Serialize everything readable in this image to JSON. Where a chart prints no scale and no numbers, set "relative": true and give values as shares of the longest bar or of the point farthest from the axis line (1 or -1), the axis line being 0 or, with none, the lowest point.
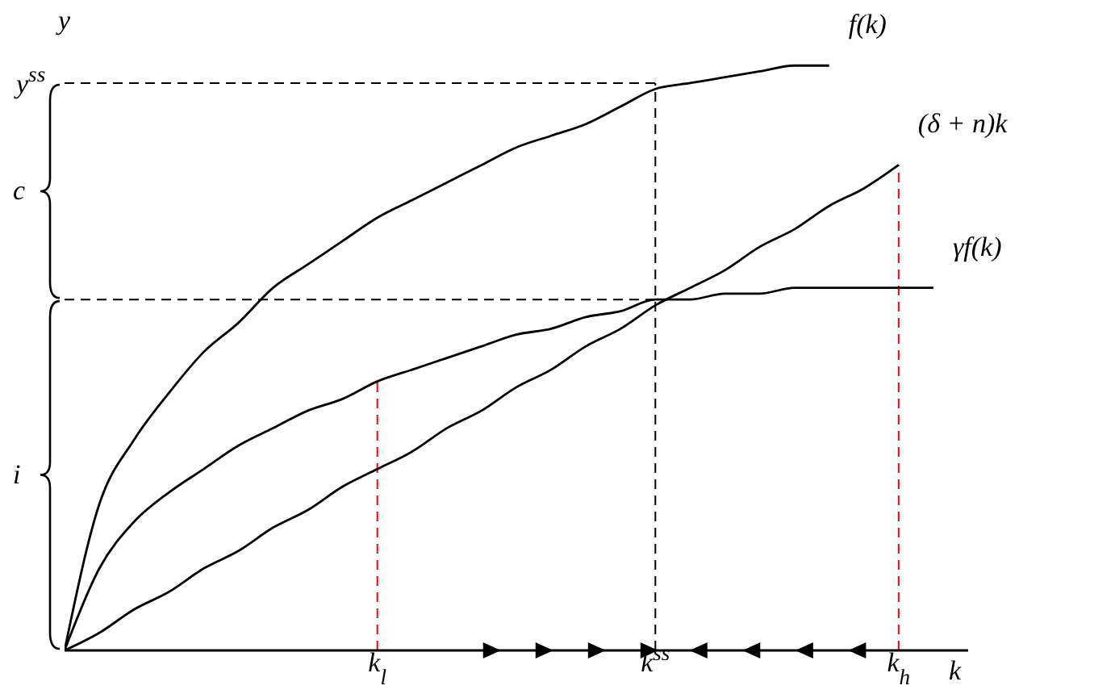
{
  "chart_data": {
    "type": "line",
    "relative": true,
    "xlabel": "k",
    "ylabel": "y",
    "legend": false,
    "grid": false,
    "marker": "none",
    "line_style": "solid",
    "categories": [
      null,
      null,
      null,
      null,
      null,
      null,
      null,
      null,
      null,
      "k$_{l}$",
      null,
      null,
      null,
      null,
      null,
      null,
      null,
      "k$^{ss}$",
      null,
      null,
      null,
      null,
      null,
      null,
      "k$_{h}$",
      null
    ],
    "series": [
      {
        "name": "f(k)",
        "color": "#000000",
        "values": [
          0,
          0.25,
          0.36,
          0.44,
          0.51,
          0.56,
          0.62,
          0.66,
          0.7,
          0.74,
          0.77,
          0.8,
          0.83,
          0.86,
          0.88,
          0.9,
          0.93,
          0.96,
          0.97,
          0.98,
          0.99,
          1.0,
          1.0,
          null,
          null,
          null
        ]
      },
      {
        "name": "(δ + n)k",
        "color": "#000000",
        "values": [
          0,
          0.03,
          0.07,
          0.1,
          0.14,
          0.17,
          0.21,
          0.24,
          0.28,
          0.31,
          0.34,
          0.38,
          0.41,
          0.45,
          0.48,
          0.52,
          0.55,
          0.59,
          0.62,
          0.65,
          0.69,
          0.72,
          0.76,
          0.79,
          0.83,
          null
        ]
      },
      {
        "name": "γf(k)",
        "color": "#000000",
        "values": [
          0,
          0.14,
          0.22,
          0.27,
          0.31,
          0.35,
          0.38,
          0.41,
          0.43,
          0.46,
          0.48,
          0.5,
          0.52,
          0.54,
          0.55,
          0.57,
          0.58,
          0.6,
          0.6,
          0.61,
          0.61,
          0.62,
          0.62,
          0.62,
          0.62,
          0.62
        ]
      }
    ],
    "ref_lines": [
      {
        "axis": "y",
        "value": 0.97,
        "label": "y$^{ss}$",
        "color": "#000000",
        "line_style": "dashed"
      },
      {
        "axis": "y",
        "value": 0.6,
        "color": "#000000",
        "line_style": "dashed"
      },
      {
        "axis": "x",
        "value": "k$^{ss}$",
        "color": "#000000",
        "line_style": "dashed"
      },
      {
        "axis": "x",
        "value": "k$_{l}$",
        "color": "#ff0000",
        "line_style": "dashed"
      },
      {
        "axis": "x",
        "value": "k$_{h}$",
        "color": "#ff0000",
        "line_style": "dashed"
      }
    ],
    "annotations": [
      "c",
      "i"
    ]
  }
}
